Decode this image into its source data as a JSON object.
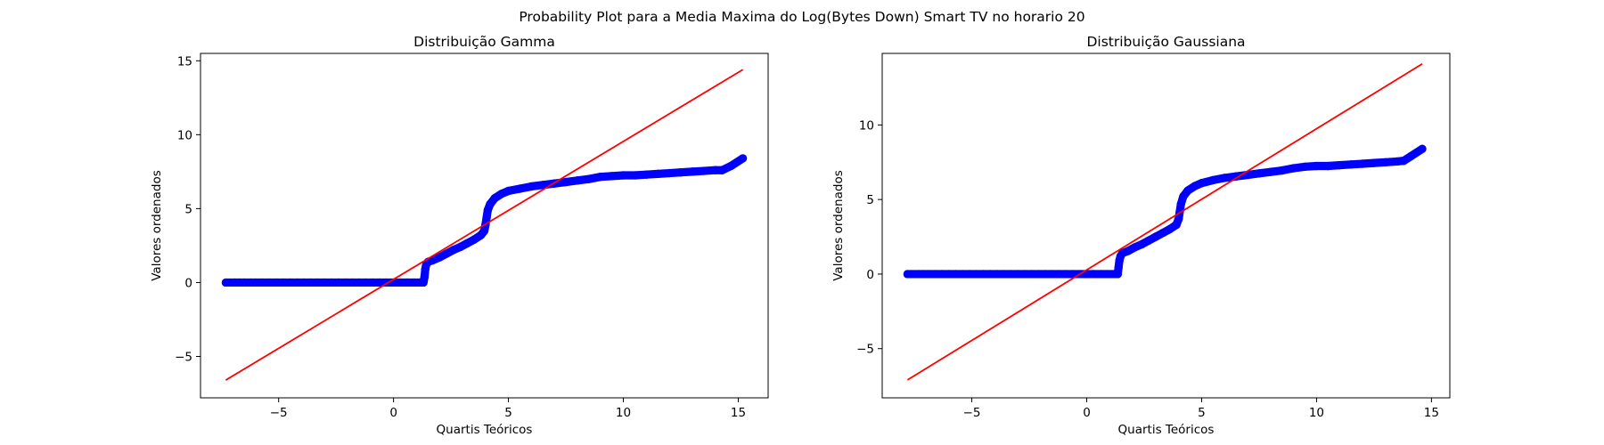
{
  "suptitle": "Probability Plot para a Media Maxima do Log(Bytes Down) Smart TV no horario 20",
  "colors": {
    "points": "#0000ff",
    "fit_line": "#ff0000",
    "axes": "#000000"
  },
  "chart_data": [
    {
      "type": "scatter",
      "title": "Distribuição Gamma",
      "xlabel": "Quartis Teóricos",
      "ylabel": "Valores ordenados",
      "xlim": [
        -8.4,
        16.3
      ],
      "ylim": [
        -7.8,
        15.5
      ],
      "xticks": [
        -5,
        0,
        5,
        10,
        15
      ],
      "yticks": [
        -5,
        0,
        5,
        10,
        15
      ],
      "tick_labels_x": [
        "−5",
        "0",
        "5",
        "10",
        "15"
      ],
      "tick_labels_y": [
        "−5",
        "0",
        "5",
        "10",
        "15"
      ],
      "fit_line": {
        "x": [
          -7.3,
          15.2
        ],
        "y": [
          -6.6,
          14.4
        ]
      },
      "points": [
        [
          -7.3,
          0.0
        ],
        [
          -6.9,
          0.0
        ],
        [
          -6.7,
          0.0
        ],
        [
          -6.5,
          0.0
        ],
        [
          -6.2,
          0.0
        ],
        [
          -6.0,
          0.0
        ],
        [
          -5.7,
          0.0
        ],
        [
          -5.4,
          0.0
        ],
        [
          -5.1,
          0.0
        ],
        [
          -4.8,
          0.0
        ],
        [
          -4.5,
          0.0
        ],
        [
          -4.2,
          0.0
        ],
        [
          -3.9,
          0.0
        ],
        [
          -3.6,
          0.0
        ],
        [
          -3.3,
          0.0
        ],
        [
          -3.0,
          0.0
        ],
        [
          -2.7,
          0.0
        ],
        [
          -2.4,
          0.0
        ],
        [
          -2.1,
          0.0
        ],
        [
          -1.8,
          0.0
        ],
        [
          -1.5,
          0.0
        ],
        [
          -1.2,
          0.0
        ],
        [
          -0.9,
          0.0
        ],
        [
          -0.6,
          0.0
        ],
        [
          -0.3,
          0.0
        ],
        [
          0.0,
          0.0
        ],
        [
          0.3,
          0.0
        ],
        [
          0.6,
          0.0
        ],
        [
          0.9,
          0.0
        ],
        [
          1.1,
          0.0
        ],
        [
          1.3,
          0.0
        ],
        [
          1.35,
          0.4
        ],
        [
          1.38,
          0.9
        ],
        [
          1.42,
          1.2
        ],
        [
          1.5,
          1.4
        ],
        [
          1.7,
          1.5
        ],
        [
          2.0,
          1.7
        ],
        [
          2.3,
          1.95
        ],
        [
          2.6,
          2.2
        ],
        [
          2.9,
          2.4
        ],
        [
          3.2,
          2.65
        ],
        [
          3.5,
          2.9
        ],
        [
          3.8,
          3.2
        ],
        [
          3.95,
          3.5
        ],
        [
          4.0,
          3.9
        ],
        [
          4.05,
          4.4
        ],
        [
          4.1,
          4.9
        ],
        [
          4.2,
          5.3
        ],
        [
          4.4,
          5.7
        ],
        [
          4.7,
          6.0
        ],
        [
          5.0,
          6.2
        ],
        [
          5.5,
          6.35
        ],
        [
          6.0,
          6.5
        ],
        [
          6.5,
          6.6
        ],
        [
          7.0,
          6.7
        ],
        [
          7.5,
          6.8
        ],
        [
          8.0,
          6.9
        ],
        [
          8.5,
          7.0
        ],
        [
          9.0,
          7.15
        ],
        [
          9.5,
          7.2
        ],
        [
          10.0,
          7.25
        ],
        [
          10.5,
          7.25
        ],
        [
          11.0,
          7.3
        ],
        [
          11.5,
          7.35
        ],
        [
          12.0,
          7.4
        ],
        [
          12.5,
          7.45
        ],
        [
          13.0,
          7.5
        ],
        [
          13.5,
          7.55
        ],
        [
          14.0,
          7.6
        ],
        [
          14.3,
          7.6
        ],
        [
          14.7,
          7.9
        ],
        [
          15.2,
          8.4
        ]
      ]
    },
    {
      "type": "scatter",
      "title": "Distribuição Gaussiana",
      "xlabel": "Quartis Teóricos",
      "ylabel": "Valores ordenados",
      "xlim": [
        -8.9,
        15.8
      ],
      "ylim": [
        -8.3,
        14.8
      ],
      "xticks": [
        -5,
        0,
        5,
        10,
        15
      ],
      "yticks": [
        -5,
        0,
        5,
        10
      ],
      "tick_labels_x": [
        "−5",
        "0",
        "5",
        "10",
        "15"
      ],
      "tick_labels_y": [
        "−5",
        "0",
        "5",
        "10"
      ],
      "fit_line": {
        "x": [
          -7.8,
          14.6
        ],
        "y": [
          -7.1,
          14.1
        ]
      },
      "points": [
        [
          -7.8,
          0.0
        ],
        [
          -7.3,
          0.0
        ],
        [
          -7.1,
          0.0
        ],
        [
          -6.9,
          0.0
        ],
        [
          -6.6,
          0.0
        ],
        [
          -6.3,
          0.0
        ],
        [
          -6.0,
          0.0
        ],
        [
          -5.7,
          0.0
        ],
        [
          -5.4,
          0.0
        ],
        [
          -5.1,
          0.0
        ],
        [
          -4.8,
          0.0
        ],
        [
          -4.5,
          0.0
        ],
        [
          -4.2,
          0.0
        ],
        [
          -3.9,
          0.0
        ],
        [
          -3.6,
          0.0
        ],
        [
          -3.3,
          0.0
        ],
        [
          -3.0,
          0.0
        ],
        [
          -2.7,
          0.0
        ],
        [
          -2.4,
          0.0
        ],
        [
          -2.1,
          0.0
        ],
        [
          -1.8,
          0.0
        ],
        [
          -1.5,
          0.0
        ],
        [
          -1.2,
          0.0
        ],
        [
          -0.9,
          0.0
        ],
        [
          -0.6,
          0.0
        ],
        [
          -0.3,
          0.0
        ],
        [
          0.0,
          0.0
        ],
        [
          0.3,
          0.0
        ],
        [
          0.6,
          0.0
        ],
        [
          0.9,
          0.0
        ],
        [
          1.2,
          0.0
        ],
        [
          1.35,
          0.0
        ],
        [
          1.38,
          0.4
        ],
        [
          1.42,
          0.9
        ],
        [
          1.47,
          1.2
        ],
        [
          1.55,
          1.4
        ],
        [
          1.8,
          1.55
        ],
        [
          2.1,
          1.8
        ],
        [
          2.4,
          2.0
        ],
        [
          2.7,
          2.25
        ],
        [
          3.0,
          2.5
        ],
        [
          3.3,
          2.75
        ],
        [
          3.6,
          3.0
        ],
        [
          3.9,
          3.3
        ],
        [
          4.0,
          3.7
        ],
        [
          4.05,
          4.2
        ],
        [
          4.1,
          4.7
        ],
        [
          4.2,
          5.2
        ],
        [
          4.4,
          5.6
        ],
        [
          4.7,
          5.9
        ],
        [
          5.0,
          6.1
        ],
        [
          5.5,
          6.3
        ],
        [
          6.0,
          6.45
        ],
        [
          6.5,
          6.55
        ],
        [
          7.0,
          6.65
        ],
        [
          7.5,
          6.75
        ],
        [
          8.0,
          6.85
        ],
        [
          8.5,
          6.95
        ],
        [
          9.0,
          7.1
        ],
        [
          9.5,
          7.2
        ],
        [
          10.0,
          7.25
        ],
        [
          10.5,
          7.25
        ],
        [
          11.0,
          7.3
        ],
        [
          11.5,
          7.35
        ],
        [
          12.0,
          7.4
        ],
        [
          12.5,
          7.45
        ],
        [
          13.0,
          7.5
        ],
        [
          13.5,
          7.55
        ],
        [
          13.8,
          7.6
        ],
        [
          14.1,
          7.9
        ],
        [
          14.6,
          8.4
        ]
      ]
    }
  ]
}
